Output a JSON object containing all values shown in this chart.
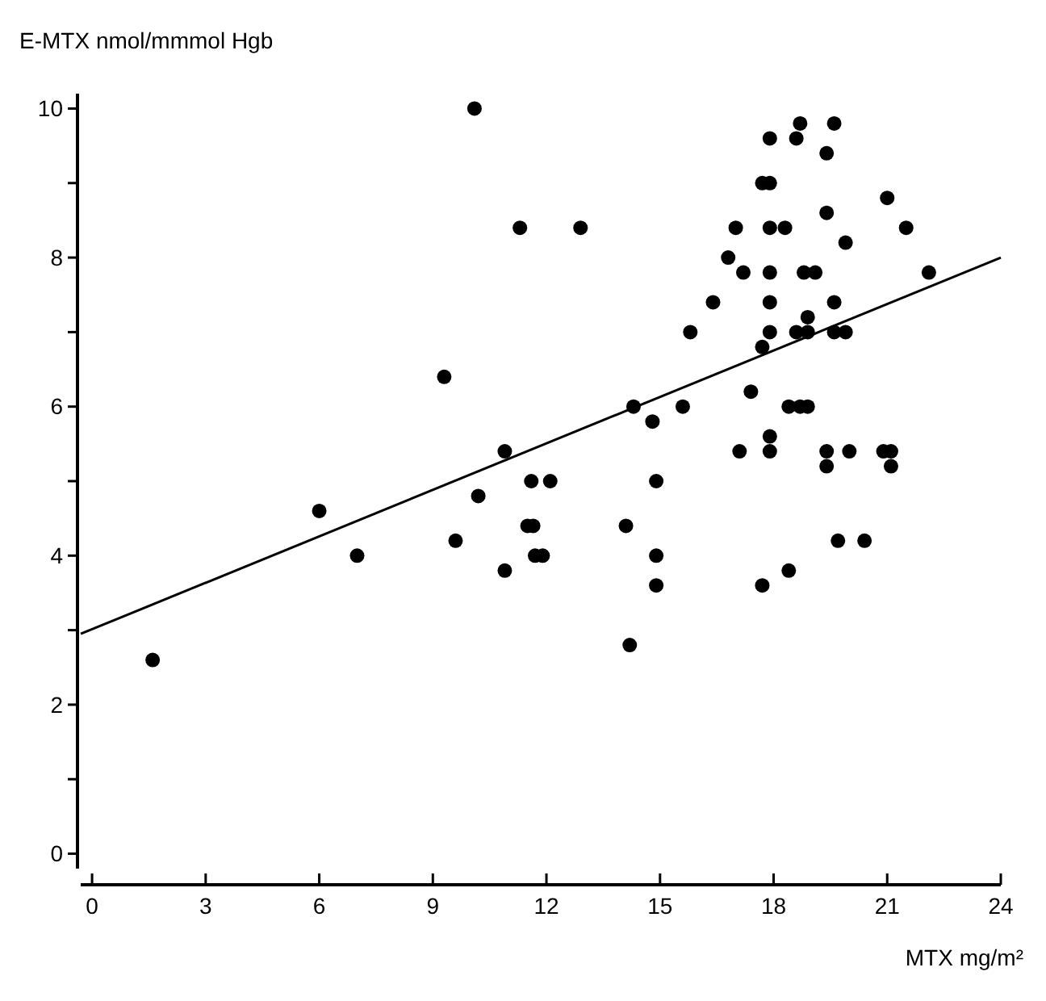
{
  "chart_data": {
    "type": "scatter",
    "xlabel": "MTX mg/m²",
    "ylabel": "E-MTX nmol/mmmol Hgb",
    "xlim": [
      -0.3,
      24
    ],
    "ylim": [
      -0.2,
      10.2
    ],
    "xticks": [
      0,
      3,
      6,
      9,
      12,
      15,
      18,
      21,
      24
    ],
    "yticks": [
      0,
      {
        "value": 1,
        "label": null
      },
      2,
      {
        "value": 3,
        "label": null
      },
      4,
      {
        "value": 5,
        "label": null
      },
      6,
      {
        "value": 7,
        "label": null
      },
      8,
      {
        "value": 9,
        "label": null
      },
      10
    ],
    "marker": "circle",
    "grid": false,
    "series": [
      {
        "color": "#000000",
        "x": [
          1.6,
          6.0,
          7.0,
          9.3,
          9.6,
          10.1,
          10.2,
          10.9,
          10.9,
          11.3,
          11.5,
          11.65,
          11.6,
          11.7,
          11.9,
          12.1,
          12.9,
          14.1,
          14.2,
          14.3,
          14.8,
          14.9,
          14.9,
          14.9,
          15.6,
          15.8,
          16.4,
          16.8,
          17.0,
          17.1,
          17.2,
          17.4,
          17.7,
          17.7,
          17.7,
          17.9,
          17.9,
          17.9,
          17.9,
          17.9,
          17.9,
          17.9,
          17.9,
          18.3,
          18.4,
          18.4,
          18.6,
          18.6,
          18.7,
          18.7,
          18.8,
          18.9,
          18.9,
          18.9,
          19.1,
          19.4,
          19.4,
          19.4,
          19.4,
          19.6,
          19.6,
          19.6,
          19.7,
          19.9,
          19.9,
          20.0,
          20.4,
          20.9,
          21.0,
          21.1,
          21.1,
          21.5,
          22.1
        ],
        "values": [
          2.6,
          4.6,
          4.0,
          6.4,
          4.2,
          10.0,
          4.8,
          5.4,
          3.8,
          8.4,
          4.4,
          4.4,
          5.0,
          4.0,
          4.0,
          5.0,
          8.4,
          4.4,
          2.8,
          6.0,
          5.8,
          5.0,
          4.0,
          3.6,
          6.0,
          7.0,
          7.4,
          8.0,
          8.4,
          5.4,
          7.8,
          6.2,
          6.8,
          3.6,
          9.0,
          9.0,
          9.6,
          8.4,
          7.8,
          7.4,
          7.0,
          5.6,
          5.4,
          8.4,
          6.0,
          3.8,
          7.0,
          9.6,
          9.8,
          6.0,
          7.8,
          6.0,
          7.2,
          7.0,
          7.8,
          9.4,
          8.6,
          5.4,
          5.2,
          9.8,
          7.4,
          7.0,
          4.2,
          7.0,
          8.2,
          5.4,
          4.2,
          5.4,
          8.8,
          5.4,
          5.2,
          8.4,
          7.8
        ]
      },
      {
        "type": "line",
        "color": "#000000",
        "marker": "none",
        "x": [
          -0.3,
          24
        ],
        "values": [
          2.95,
          8.0
        ]
      }
    ]
  }
}
